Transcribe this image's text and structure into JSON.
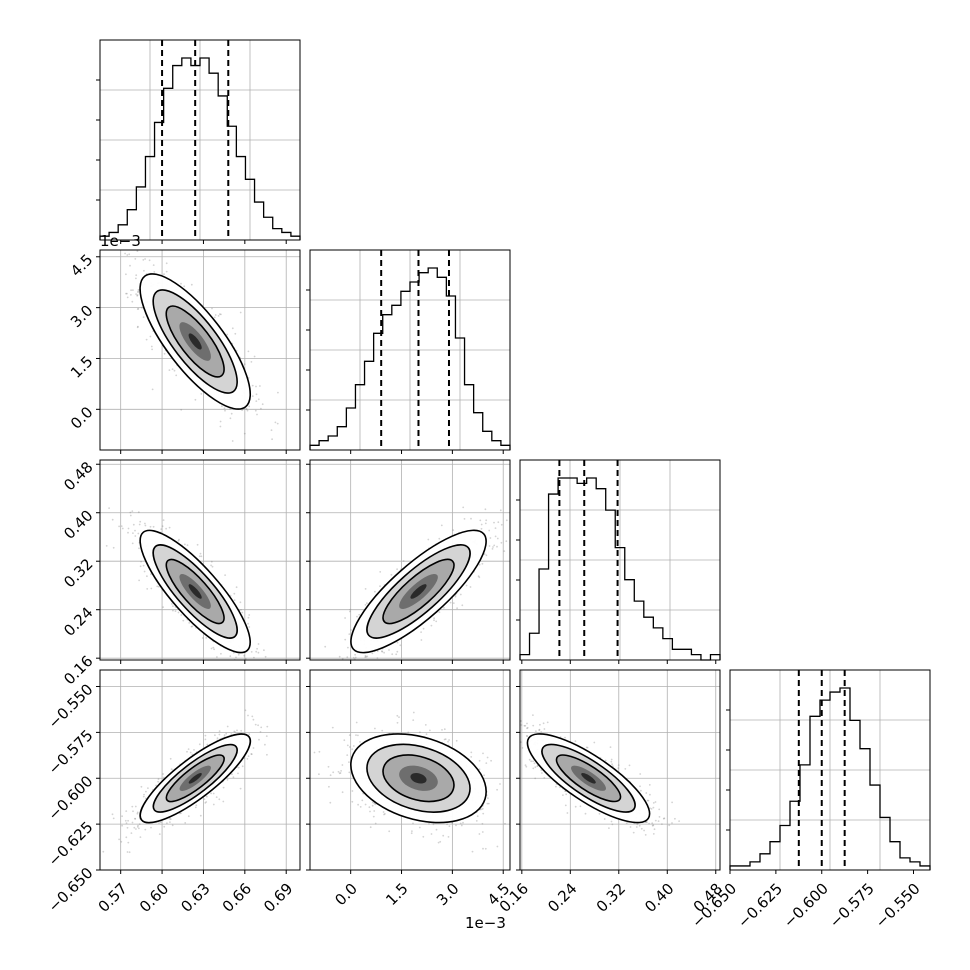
{
  "chart_data": {
    "type": "corner",
    "grid": true,
    "colors": {
      "axes": "#000000",
      "grid": "#b0b0b0",
      "points": "#808080",
      "hist": "#000000"
    },
    "parameters": [
      {
        "ticks": [
          0.57,
          0.6,
          0.63,
          0.66,
          0.69
        ],
        "tick_labels": [
          "0.57",
          "0.60",
          "0.63",
          "0.66",
          "0.69"
        ],
        "range": [
          0.555,
          0.7
        ],
        "quantiles": [
          0.6,
          0.624,
          0.648
        ]
      },
      {
        "ticks": [
          0.0,
          1.5,
          3.0,
          4.5
        ],
        "tick_labels": [
          "0.0",
          "1.5",
          "3.0",
          "4.5"
        ],
        "range": [
          -1.2,
          4.7
        ],
        "quantiles": [
          0.9,
          2.0,
          2.9
        ],
        "offset_text": "1e−3",
        "offset_text_y": "1e−3"
      },
      {
        "ticks": [
          0.16,
          0.24,
          0.32,
          0.4,
          0.48
        ],
        "tick_labels": [
          "0.16",
          "0.24",
          "0.32",
          "0.40",
          "0.48"
        ],
        "range": [
          0.157,
          0.487
        ],
        "quantiles": [
          0.222,
          0.263,
          0.318
        ]
      },
      {
        "ticks": [
          -0.65,
          -0.625,
          -0.6,
          -0.575,
          -0.55
        ],
        "tick_labels": [
          "−0.650",
          "−0.625",
          "−0.600",
          "−0.575",
          "−0.550"
        ],
        "range": [
          -0.65,
          -0.541
        ],
        "quantiles": [
          -0.6125,
          -0.6,
          -0.5875
        ]
      }
    ],
    "histograms": [
      {
        "counts": [
          1,
          2,
          4,
          8,
          14,
          22,
          31,
          40,
          46,
          48,
          46,
          48,
          44,
          38,
          30,
          22,
          16,
          10,
          6,
          3,
          2,
          1
        ]
      },
      {
        "counts": [
          1,
          2,
          3,
          5,
          9,
          14,
          19,
          25,
          29,
          31,
          34,
          36,
          38,
          39,
          37,
          33,
          24,
          14,
          8,
          4,
          2,
          1
        ]
      },
      {
        "counts": [
          1,
          5,
          17,
          31,
          34,
          34,
          33,
          34,
          32,
          28,
          21,
          15,
          11,
          8,
          6,
          4,
          2,
          2,
          1,
          0,
          1
        ]
      },
      {
        "counts": [
          1,
          1,
          2,
          4,
          7,
          11,
          17,
          26,
          38,
          42,
          44,
          45,
          37,
          30,
          21,
          13,
          7,
          3,
          2,
          1
        ]
      }
    ],
    "pairs": [
      {
        "row": 1,
        "col": 0,
        "mean": [
          0.624,
          2.0
        ],
        "std": [
          0.019,
          0.95
        ],
        "corr": -0.78
      },
      {
        "row": 2,
        "col": 0,
        "mean": [
          0.624,
          0.27
        ],
        "std": [
          0.019,
          0.048
        ],
        "corr": -0.83
      },
      {
        "row": 2,
        "col": 1,
        "mean": [
          2.0,
          0.27
        ],
        "std": [
          0.95,
          0.048
        ],
        "corr": 0.82
      },
      {
        "row": 3,
        "col": 0,
        "mean": [
          0.624,
          -0.6
        ],
        "std": [
          0.019,
          0.0115
        ],
        "corr": 0.84
      },
      {
        "row": 3,
        "col": 1,
        "mean": [
          2.0,
          -0.6
        ],
        "std": [
          0.95,
          0.0115
        ],
        "corr": -0.3
      },
      {
        "row": 3,
        "col": 2,
        "mean": [
          0.27,
          -0.6
        ],
        "std": [
          0.048,
          0.0115
        ],
        "corr": -0.8
      }
    ]
  }
}
